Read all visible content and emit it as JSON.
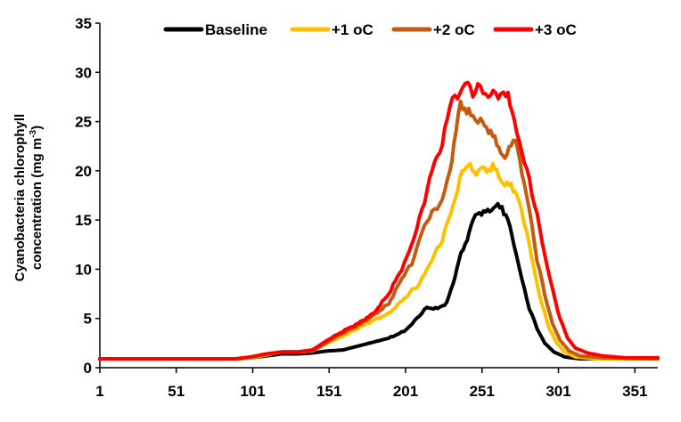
{
  "chart_data": {
    "type": "line",
    "title": "",
    "xlabel": "",
    "ylabel_line1": "Cyanobacteria chlorophyll",
    "ylabel_line2": "concentration (mg m",
    "ylabel_sup": "-3",
    "ylabel_close": ")",
    "xlim": [
      1,
      366
    ],
    "ylim": [
      0,
      35
    ],
    "xticks": [
      1,
      51,
      101,
      151,
      201,
      251,
      301,
      351
    ],
    "yticks": [
      0,
      5,
      10,
      15,
      20,
      25,
      30,
      35
    ],
    "grid": false,
    "legend_position": "top",
    "series": [
      {
        "name": "Baseline",
        "color": "#000000",
        "points": [
          [
            1,
            0.9
          ],
          [
            60,
            0.9
          ],
          [
            90,
            0.9
          ],
          [
            100,
            1.0
          ],
          [
            110,
            1.2
          ],
          [
            120,
            1.4
          ],
          [
            130,
            1.4
          ],
          [
            140,
            1.5
          ],
          [
            150,
            1.7
          ],
          [
            160,
            1.8
          ],
          [
            170,
            2.2
          ],
          [
            180,
            2.6
          ],
          [
            190,
            3.0
          ],
          [
            200,
            3.7
          ],
          [
            205,
            4.4
          ],
          [
            210,
            5.3
          ],
          [
            215,
            6.1
          ],
          [
            222,
            6.0
          ],
          [
            228,
            6.6
          ],
          [
            232,
            8.5
          ],
          [
            236,
            11.0
          ],
          [
            240,
            12.5
          ],
          [
            244,
            14.5
          ],
          [
            248,
            15.8
          ],
          [
            252,
            15.7
          ],
          [
            256,
            16.0
          ],
          [
            260,
            16.4
          ],
          [
            264,
            16.3
          ],
          [
            268,
            15.0
          ],
          [
            272,
            12.5
          ],
          [
            277,
            9.0
          ],
          [
            282,
            6.0
          ],
          [
            287,
            4.0
          ],
          [
            292,
            2.5
          ],
          [
            298,
            1.6
          ],
          [
            305,
            1.1
          ],
          [
            315,
            0.9
          ],
          [
            330,
            0.9
          ],
          [
            366,
            0.9
          ]
        ]
      },
      {
        "name": "+1 oC",
        "color": "#FFC000",
        "points": [
          [
            1,
            0.9
          ],
          [
            60,
            0.9
          ],
          [
            90,
            0.9
          ],
          [
            100,
            1.0
          ],
          [
            110,
            1.3
          ],
          [
            120,
            1.6
          ],
          [
            130,
            1.6
          ],
          [
            140,
            1.7
          ],
          [
            150,
            2.5
          ],
          [
            160,
            3.2
          ],
          [
            170,
            4.0
          ],
          [
            180,
            4.8
          ],
          [
            190,
            5.5
          ],
          [
            200,
            7.0
          ],
          [
            205,
            7.8
          ],
          [
            210,
            8.5
          ],
          [
            215,
            10.0
          ],
          [
            220,
            11.5
          ],
          [
            225,
            13.0
          ],
          [
            230,
            15.5
          ],
          [
            235,
            18.0
          ],
          [
            238,
            20.0
          ],
          [
            242,
            20.7
          ],
          [
            246,
            19.7
          ],
          [
            250,
            20.3
          ],
          [
            254,
            20.0
          ],
          [
            258,
            20.5
          ],
          [
            262,
            19.5
          ],
          [
            266,
            18.5
          ],
          [
            270,
            18.6
          ],
          [
            274,
            17.5
          ],
          [
            280,
            14.0
          ],
          [
            285,
            10.0
          ],
          [
            290,
            6.5
          ],
          [
            295,
            4.0
          ],
          [
            300,
            2.5
          ],
          [
            305,
            1.6
          ],
          [
            312,
            1.1
          ],
          [
            325,
            0.9
          ],
          [
            366,
            0.9
          ]
        ]
      },
      {
        "name": "+2 oC",
        "color": "#C55A11",
        "points": [
          [
            1,
            0.9
          ],
          [
            60,
            0.9
          ],
          [
            90,
            0.9
          ],
          [
            100,
            1.1
          ],
          [
            110,
            1.4
          ],
          [
            120,
            1.6
          ],
          [
            130,
            1.6
          ],
          [
            140,
            1.7
          ],
          [
            150,
            2.6
          ],
          [
            160,
            3.5
          ],
          [
            170,
            4.3
          ],
          [
            180,
            5.3
          ],
          [
            190,
            6.5
          ],
          [
            200,
            9.5
          ],
          [
            205,
            10.5
          ],
          [
            210,
            13.0
          ],
          [
            215,
            15.0
          ],
          [
            220,
            16.0
          ],
          [
            225,
            17.0
          ],
          [
            230,
            20.0
          ],
          [
            234,
            24.0
          ],
          [
            237,
            27.0
          ],
          [
            241,
            26.0
          ],
          [
            245,
            25.5
          ],
          [
            250,
            25.0
          ],
          [
            254,
            24.5
          ],
          [
            258,
            23.5
          ],
          [
            262,
            22.5
          ],
          [
            266,
            21.0
          ],
          [
            270,
            23.0
          ],
          [
            273,
            23.0
          ],
          [
            277,
            20.0
          ],
          [
            282,
            16.0
          ],
          [
            287,
            11.0
          ],
          [
            292,
            7.5
          ],
          [
            297,
            4.5
          ],
          [
            302,
            2.8
          ],
          [
            308,
            1.7
          ],
          [
            315,
            1.2
          ],
          [
            330,
            1.0
          ],
          [
            366,
            0.9
          ]
        ]
      },
      {
        "name": "+3 oC",
        "color": "#FF0000",
        "points": [
          [
            1,
            0.9
          ],
          [
            60,
            0.9
          ],
          [
            90,
            0.9
          ],
          [
            100,
            1.1
          ],
          [
            110,
            1.4
          ],
          [
            120,
            1.6
          ],
          [
            130,
            1.6
          ],
          [
            140,
            1.8
          ],
          [
            150,
            2.8
          ],
          [
            160,
            3.7
          ],
          [
            170,
            4.5
          ],
          [
            180,
            5.5
          ],
          [
            190,
            7.5
          ],
          [
            200,
            10.5
          ],
          [
            205,
            12.5
          ],
          [
            210,
            15.0
          ],
          [
            215,
            18.0
          ],
          [
            220,
            21.0
          ],
          [
            225,
            22.5
          ],
          [
            230,
            27.0
          ],
          [
            235,
            27.5
          ],
          [
            240,
            29.0
          ],
          [
            245,
            28.0
          ],
          [
            250,
            28.5
          ],
          [
            255,
            27.5
          ],
          [
            260,
            28.0
          ],
          [
            265,
            27.5
          ],
          [
            268,
            28.0
          ],
          [
            272,
            25.0
          ],
          [
            277,
            22.0
          ],
          [
            282,
            19.0
          ],
          [
            287,
            15.5
          ],
          [
            292,
            11.5
          ],
          [
            297,
            8.0
          ],
          [
            302,
            5.0
          ],
          [
            307,
            3.0
          ],
          [
            312,
            2.0
          ],
          [
            320,
            1.5
          ],
          [
            330,
            1.2
          ],
          [
            345,
            1.0
          ],
          [
            366,
            1.0
          ]
        ]
      }
    ]
  }
}
